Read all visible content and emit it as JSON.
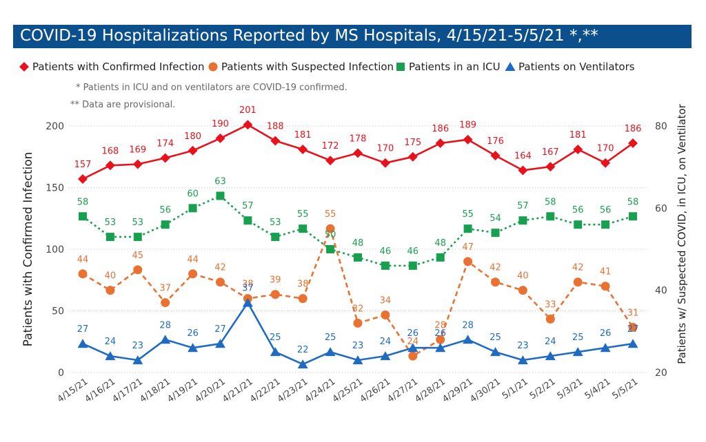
{
  "title": "COVID-19 Hospitalizations Reported by MS Hospitals, 4/15/21-5/5/21 *,**",
  "notes": [
    "* Patients in ICU and on ventilators are COVID-19 confirmed.",
    "** Data are provisional."
  ],
  "chart_data": {
    "type": "line",
    "categories": [
      "4/15/21",
      "4/16/21",
      "4/17/21",
      "4/18/21",
      "4/19/21",
      "4/20/21",
      "4/21/21",
      "4/22/21",
      "4/23/21",
      "4/24/21",
      "4/25/21",
      "4/26/21",
      "4/27/21",
      "4/28/21",
      "4/29/21",
      "4/30/21",
      "5/1/21",
      "5/2/21",
      "5/3/21",
      "5/4/21",
      "5/5/21"
    ],
    "ylabel": "Patients with Confirmed Infection",
    "y2label": "Patients w/ Suspected COVID, in ICU, on Ventilator",
    "ylim": [
      0,
      200
    ],
    "yticks": [
      0,
      50,
      100,
      150,
      200
    ],
    "y2lim": [
      20,
      80
    ],
    "y2ticks": [
      20,
      40,
      60,
      80
    ],
    "grid": "horizontal dotted",
    "legend_position": "top",
    "series": [
      {
        "name": "Patients with Confirmed Infection",
        "axis": "left",
        "color": "#e8121c",
        "marker": "diamond",
        "dash": "solid",
        "values": [
          157,
          168,
          169,
          174,
          180,
          190,
          201,
          188,
          181,
          172,
          178,
          170,
          175,
          186,
          189,
          176,
          164,
          167,
          181,
          170,
          186
        ]
      },
      {
        "name": "Patients with Suspected Infection",
        "axis": "right",
        "color": "#e97132",
        "marker": "circle",
        "dash": "dashed",
        "values": [
          44,
          40,
          45,
          37,
          44,
          42,
          38,
          39,
          38,
          55,
          32,
          34,
          24,
          28,
          47,
          42,
          40,
          33,
          42,
          41,
          31
        ]
      },
      {
        "name": "Patients in an ICU",
        "axis": "right",
        "color": "#18a050",
        "marker": "square",
        "dash": "dotted",
        "values": [
          58,
          53,
          53,
          56,
          60,
          63,
          57,
          53,
          55,
          50,
          48,
          46,
          46,
          48,
          55,
          54,
          57,
          58,
          56,
          56,
          58
        ]
      },
      {
        "name": "Patients on Ventilators",
        "axis": "right",
        "color": "#1f6bc2",
        "marker": "triangle",
        "dash": "solid",
        "values": [
          27,
          24,
          23,
          28,
          26,
          27,
          37,
          25,
          22,
          25,
          23,
          24,
          26,
          26,
          28,
          25,
          23,
          24,
          25,
          26,
          27
        ]
      }
    ]
  }
}
